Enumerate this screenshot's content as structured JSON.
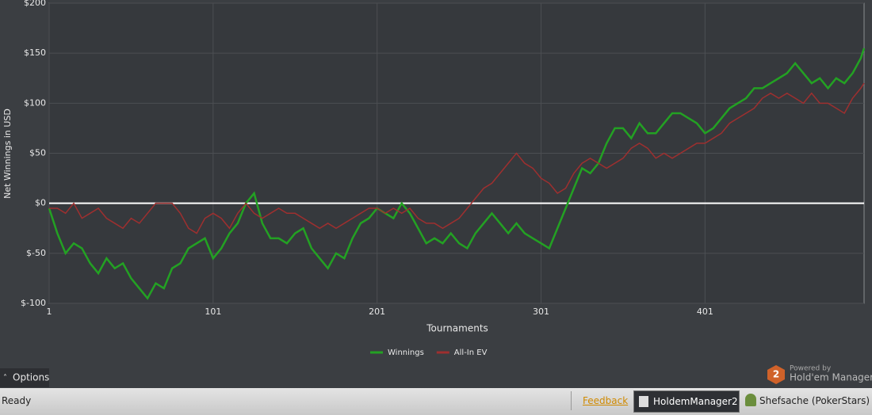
{
  "chart_data": {
    "type": "line",
    "xlabel": "Tournaments",
    "ylabel": "Net Winnings in USD",
    "x": [
      1,
      6,
      11,
      16,
      21,
      26,
      31,
      36,
      41,
      46,
      51,
      56,
      61,
      66,
      71,
      76,
      81,
      86,
      91,
      96,
      101,
      106,
      111,
      116,
      121,
      126,
      131,
      136,
      141,
      146,
      151,
      156,
      161,
      166,
      171,
      176,
      181,
      186,
      191,
      196,
      201,
      206,
      211,
      216,
      221,
      226,
      231,
      236,
      241,
      246,
      251,
      256,
      261,
      266,
      271,
      276,
      281,
      286,
      291,
      296,
      301,
      306,
      311,
      316,
      321,
      326,
      331,
      336,
      341,
      346,
      351,
      356,
      361,
      366,
      371,
      376,
      381,
      386,
      391,
      396,
      401,
      406,
      411,
      416,
      421,
      426,
      431,
      436,
      441,
      446,
      451,
      456,
      461,
      466,
      471,
      476,
      481,
      486,
      491,
      496,
      498
    ],
    "series": [
      {
        "name": "Winnings",
        "color": "#23a123",
        "values": [
          -5,
          -30,
          -50,
          -40,
          -45,
          -60,
          -70,
          -55,
          -65,
          -60,
          -75,
          -85,
          -95,
          -80,
          -85,
          -65,
          -60,
          -45,
          -40,
          -35,
          -55,
          -45,
          -30,
          -20,
          0,
          10,
          -20,
          -35,
          -35,
          -40,
          -30,
          -25,
          -45,
          -55,
          -65,
          -50,
          -55,
          -35,
          -20,
          -15,
          -5,
          -10,
          -15,
          0,
          -10,
          -25,
          -40,
          -35,
          -40,
          -30,
          -40,
          -45,
          -30,
          -20,
          -10,
          -20,
          -30,
          -20,
          -30,
          -35,
          -40,
          -45,
          -25,
          -5,
          15,
          35,
          30,
          40,
          60,
          75,
          75,
          65,
          80,
          70,
          70,
          80,
          90,
          90,
          85,
          80,
          70,
          75,
          85,
          95,
          100,
          105,
          115,
          115,
          120,
          125,
          130,
          140,
          130,
          120,
          125,
          115,
          125,
          120,
          130,
          145,
          155
        ]
      },
      {
        "name": "All-In EV",
        "color": "#9e2f2f",
        "values": [
          -5,
          -5,
          -10,
          0,
          -15,
          -10,
          -5,
          -15,
          -20,
          -25,
          -15,
          -20,
          -10,
          0,
          0,
          0,
          -10,
          -25,
          -30,
          -15,
          -10,
          -15,
          -25,
          -10,
          0,
          -10,
          -15,
          -10,
          -5,
          -10,
          -10,
          -15,
          -20,
          -25,
          -20,
          -25,
          -20,
          -15,
          -10,
          -5,
          -5,
          -10,
          -5,
          -10,
          -5,
          -15,
          -20,
          -20,
          -25,
          -20,
          -15,
          -5,
          5,
          15,
          20,
          30,
          40,
          50,
          40,
          35,
          25,
          20,
          10,
          15,
          30,
          40,
          45,
          40,
          35,
          40,
          45,
          55,
          60,
          55,
          45,
          50,
          45,
          50,
          55,
          60,
          60,
          65,
          70,
          80,
          85,
          90,
          95,
          105,
          110,
          105,
          110,
          105,
          100,
          110,
          100,
          100,
          95,
          90,
          105,
          115,
          120
        ]
      }
    ],
    "xlim": [
      1,
      498
    ],
    "xticks": [
      1,
      101,
      201,
      301,
      401
    ],
    "ylim": [
      -100,
      200
    ],
    "yticks": [
      {
        "value": -100,
        "label": "$-100"
      },
      {
        "value": -50,
        "label": "$-50"
      },
      {
        "value": 0,
        "label": "$0"
      },
      {
        "value": 50,
        "label": "$50"
      },
      {
        "value": 100,
        "label": "$100"
      },
      {
        "value": 150,
        "label": "$150"
      },
      {
        "value": 200,
        "label": "$200"
      }
    ],
    "grid": true,
    "legend": "bottom"
  },
  "ui": {
    "options": "Options",
    "status": "Ready",
    "feedback": "Feedback",
    "app": "HoldemManager2",
    "user": "Shefsache (PokerStars)",
    "badge": "2",
    "powered": "Powered by",
    "brand": "Hold'em Manager"
  }
}
